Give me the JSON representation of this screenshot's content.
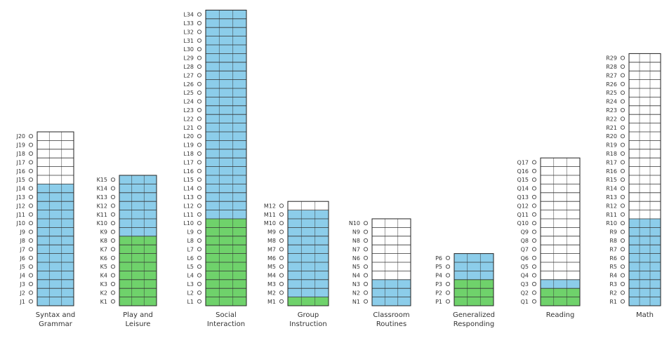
{
  "chart_data": {
    "type": "bar",
    "title": "",
    "xlabel": "",
    "ylabel": "",
    "colors": {
      "blue": "#8ccdea",
      "green": "#6fd26b",
      "outline": "#222222"
    },
    "categories": [
      {
        "name": "Syntax and Grammar",
        "label_lines": [
          "Syntax and",
          "Grammar"
        ],
        "prefix": "J",
        "levels": 20,
        "blue_to": 14,
        "green_to": 0
      },
      {
        "name": "Play and Leisure",
        "label_lines": [
          "Play and",
          "Leisure"
        ],
        "prefix": "K",
        "levels": 15,
        "blue_to": 15,
        "green_to": 8
      },
      {
        "name": "Social Interaction",
        "label_lines": [
          "Social",
          "Interaction"
        ],
        "prefix": "L",
        "levels": 34,
        "blue_to": 34,
        "green_to": 10
      },
      {
        "name": "Group Instruction",
        "label_lines": [
          "Group",
          "Instruction"
        ],
        "prefix": "M",
        "levels": 12,
        "blue_to": 11,
        "green_to": 1
      },
      {
        "name": "Classroom Routines",
        "label_lines": [
          "Classroom",
          "Routines"
        ],
        "prefix": "N",
        "levels": 10,
        "blue_to": 3,
        "green_to": 0
      },
      {
        "name": "Generalized Responding",
        "label_lines": [
          "Generalized",
          "Responding"
        ],
        "prefix": "P",
        "levels": 6,
        "blue_to": 6,
        "green_to": 3
      },
      {
        "name": "Reading",
        "label_lines": [
          "Reading"
        ],
        "prefix": "Q",
        "levels": 17,
        "blue_to": 3,
        "green_to": 2
      },
      {
        "name": "Math",
        "label_lines": [
          "Math"
        ],
        "prefix": "R",
        "levels": 29,
        "blue_to": 10,
        "green_to": 0
      }
    ]
  }
}
